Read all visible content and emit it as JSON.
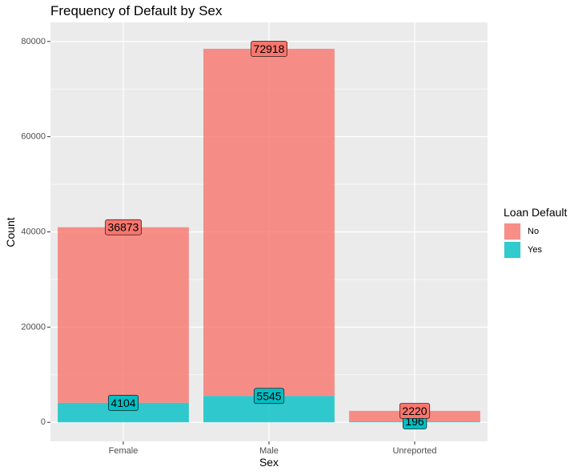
{
  "chart_data": {
    "type": "bar",
    "stacked": true,
    "title": "Frequency of Default by Sex",
    "xlabel": "Sex",
    "ylabel": "Count",
    "categories": [
      "Female",
      "Male",
      "Unreported"
    ],
    "series": [
      {
        "name": "No",
        "color": "#F8766D",
        "values": [
          36873,
          72918,
          2220
        ]
      },
      {
        "name": "Yes",
        "color": "#00BFC4",
        "values": [
          4104,
          5545,
          196
        ]
      }
    ],
    "ylim": [
      -4000,
      84000
    ],
    "yticks": [
      0,
      20000,
      40000,
      60000,
      80000
    ],
    "ytick_labels": [
      "0",
      "20000",
      "40000",
      "60000",
      "80000"
    ],
    "grid": true,
    "legend": {
      "title": "Loan Default",
      "position": "right",
      "labels": [
        "No",
        "Yes"
      ]
    },
    "bar_opacity": 0.8
  }
}
